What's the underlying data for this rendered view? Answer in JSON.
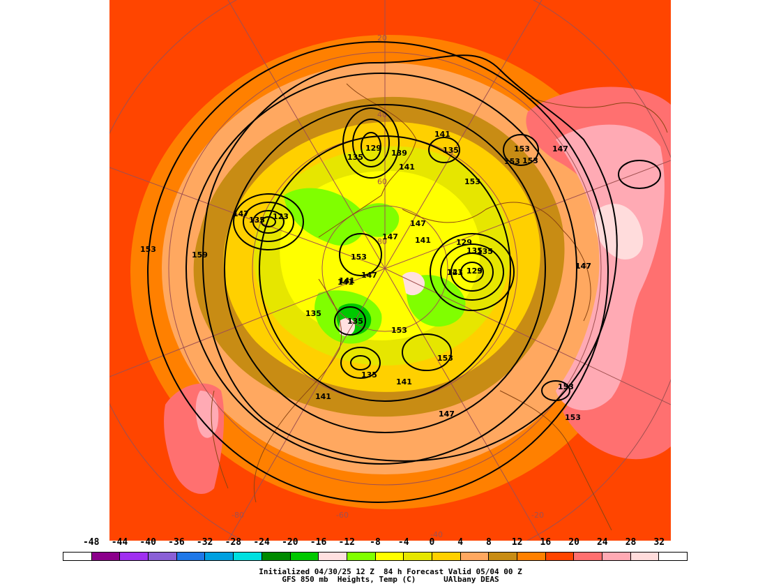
{
  "map": {
    "height_labels": [
      "129",
      "135",
      "139",
      "141",
      "153",
      "147",
      "141",
      "135",
      "153",
      "153",
      "153",
      "147",
      "153",
      "123",
      "135",
      "147",
      "129",
      "135",
      "141",
      "123",
      "147",
      "159",
      "153",
      "147",
      "153",
      "141",
      "147",
      "147",
      "123",
      "135",
      "129",
      "147",
      "141",
      "141",
      "135",
      "135",
      "153",
      "153",
      "135",
      "141",
      "141",
      "147",
      "153",
      "153"
    ],
    "grid_labels": [
      "20",
      "40",
      "60",
      "80",
      "-80",
      "-60",
      "-40",
      "-20"
    ]
  },
  "legend": {
    "ticks": [
      "-48",
      "-44",
      "-40",
      "-36",
      "-32",
      "-28",
      "-24",
      "-20",
      "-16",
      "-12",
      "-8",
      "-4",
      "0",
      "4",
      "8",
      "12",
      "16",
      "20",
      "24",
      "28",
      "32"
    ],
    "colors": [
      "#ffffff",
      "#8b008b",
      "#a030f0",
      "#8a60d6",
      "#1f78e8",
      "#00a0e0",
      "#00e0e0",
      "#008a00",
      "#00c800",
      "#ffe0e0",
      "#80ff00",
      "#ffff00",
      "#e6e600",
      "#ffd000",
      "#ffa860",
      "#c88c14",
      "#ff8000",
      "#ff4500",
      "#ff7070",
      "#ffaab4",
      "#ffdcdc",
      "#ffffff"
    ]
  },
  "caption": {
    "line1": "Initialized 04/30/25 12 Z  84 h Forecast Valid 05/04 00 Z",
    "line2": "GFS 850 mb  Heights, Temp (C)      UAlbany DEAS"
  }
}
